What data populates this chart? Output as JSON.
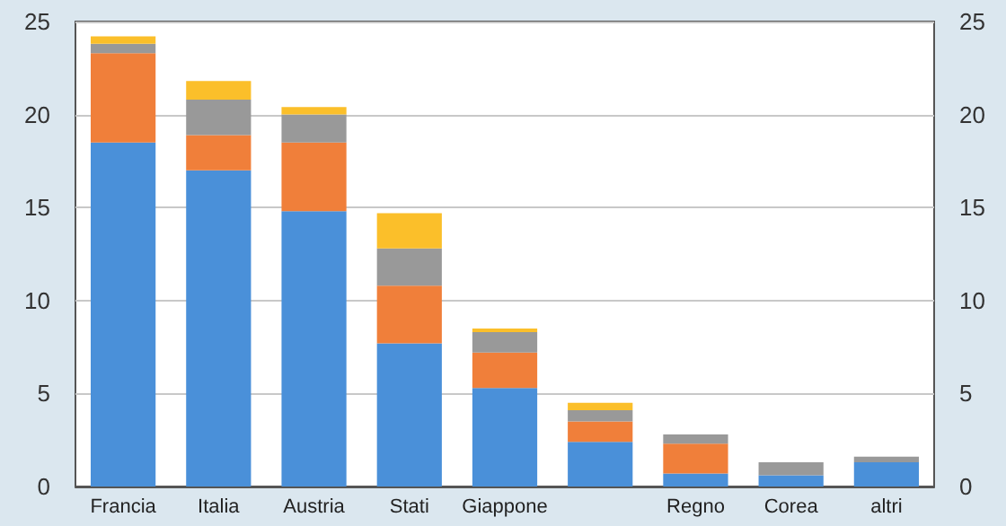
{
  "chart_data": {
    "type": "bar",
    "stacked": true,
    "categories": [
      "Francia",
      "Italia",
      "Austria",
      "Stati",
      "Giappone",
      null,
      "Regno",
      "Corea",
      "altri"
    ],
    "series": [
      {
        "color": "#4a90d9",
        "values": [
          18.5,
          17.0,
          14.8,
          7.7,
          5.3,
          2.4,
          0.7,
          0.6,
          1.3
        ]
      },
      {
        "color": "#f07f3a",
        "values": [
          4.8,
          1.9,
          3.7,
          3.1,
          1.9,
          1.1,
          1.6,
          0,
          0
        ]
      },
      {
        "color": "#999999",
        "values": [
          0.5,
          1.9,
          1.5,
          2.0,
          1.1,
          0.6,
          0.5,
          0.7,
          0.3
        ]
      },
      {
        "color": "#fbbf2a",
        "values": [
          0.4,
          1.0,
          0.4,
          1.9,
          0.2,
          0.4,
          0,
          0,
          0
        ]
      }
    ],
    "ylim": [
      0,
      25
    ],
    "yticks": [
      0,
      5,
      10,
      15,
      20,
      25
    ],
    "y2lim": [
      0,
      25
    ],
    "y2ticks": [
      0,
      5,
      10,
      15,
      20,
      25
    ],
    "grid": "y"
  }
}
